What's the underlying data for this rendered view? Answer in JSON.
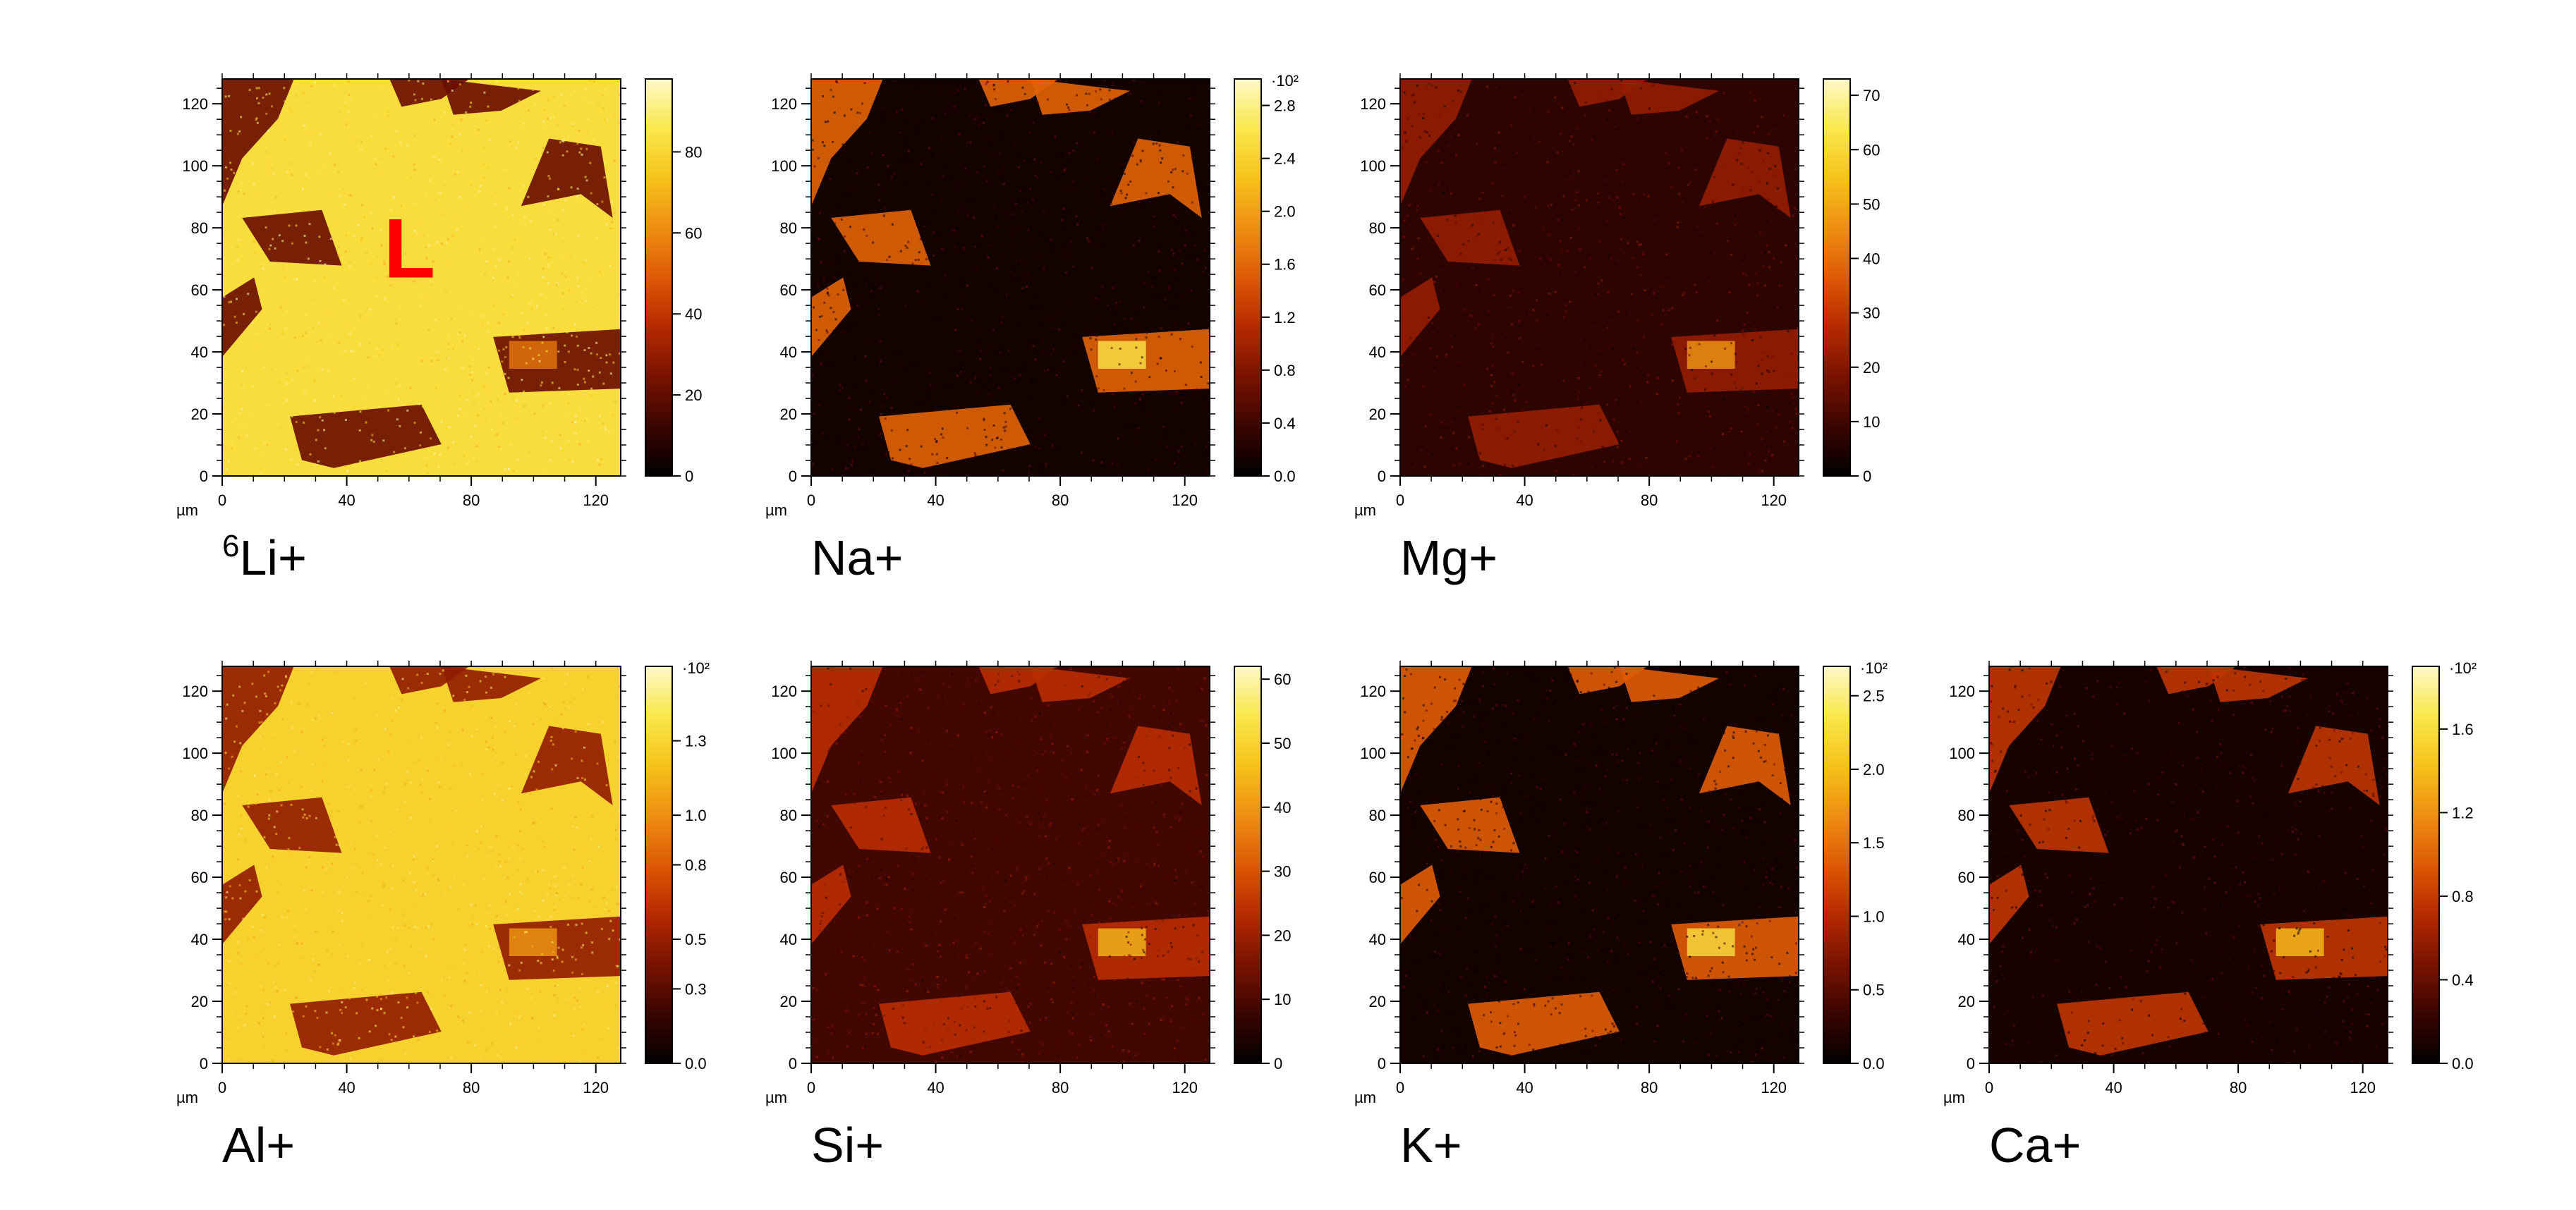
{
  "figure": {
    "background": "#ffffff"
  },
  "colormap_stops": [
    "#000000",
    "#3a0500",
    "#7a1200",
    "#b52a00",
    "#dd5a05",
    "#ef8e12",
    "#f6c21c",
    "#f9e84a",
    "#fff8c8"
  ],
  "chart_data": [
    {
      "type": "heatmap",
      "title": "Li+",
      "title_superscript": "6",
      "annotation": "L",
      "xlabel": "µm",
      "xlim": [
        0,
        128
      ],
      "ylim": [
        0,
        128
      ],
      "x_ticks": [
        "0",
        "40",
        "80",
        "120"
      ],
      "y_ticks": [
        "0",
        "20",
        "40",
        "60",
        "80",
        "100",
        "120"
      ],
      "colorbar": {
        "min": 0,
        "max": 98,
        "ticks": [
          "0",
          "20",
          "40",
          "60",
          "80"
        ],
        "tick_values": [
          0,
          20,
          40,
          60,
          80
        ],
        "exponent": ""
      },
      "typical_level": {
        "background": 0.84,
        "feature": 0.22
      }
    },
    {
      "type": "heatmap",
      "title": "Na+",
      "xlabel": "µm",
      "xlim": [
        0,
        128
      ],
      "ylim": [
        0,
        128
      ],
      "x_ticks": [
        "0",
        "40",
        "80",
        "120"
      ],
      "y_ticks": [
        "0",
        "20",
        "40",
        "60",
        "80",
        "100",
        "120"
      ],
      "colorbar": {
        "min": 0,
        "max": 3.0,
        "ticks": [
          "0.0",
          "0.4",
          "0.8",
          "1.2",
          "1.6",
          "2.0",
          "2.4",
          "2.8"
        ],
        "tick_values": [
          0,
          0.4,
          0.8,
          1.2,
          1.6,
          2.0,
          2.4,
          2.8
        ],
        "exponent": "·10²"
      },
      "typical_level": {
        "background": 0.04,
        "feature": 0.52
      }
    },
    {
      "type": "heatmap",
      "title": "Mg+",
      "xlabel": "µm",
      "xlim": [
        0,
        128
      ],
      "ylim": [
        0,
        128
      ],
      "x_ticks": [
        "0",
        "40",
        "80",
        "120"
      ],
      "y_ticks": [
        "0",
        "20",
        "40",
        "60",
        "80",
        "100",
        "120"
      ],
      "colorbar": {
        "min": 0,
        "max": 73,
        "ticks": [
          "0",
          "10",
          "20",
          "30",
          "40",
          "50",
          "60",
          "70"
        ],
        "tick_values": [
          0,
          10,
          20,
          30,
          40,
          50,
          60,
          70
        ],
        "exponent": ""
      },
      "typical_level": {
        "background": 0.1,
        "feature": 0.3
      }
    },
    {
      "type": "heatmap",
      "title": "Al+",
      "xlabel": "µm",
      "xlim": [
        0,
        128
      ],
      "ylim": [
        0,
        128
      ],
      "x_ticks": [
        "0",
        "40",
        "80",
        "120"
      ],
      "y_ticks": [
        "0",
        "20",
        "40",
        "60",
        "80",
        "100",
        "120"
      ],
      "colorbar": {
        "min": 0,
        "max": 1.6,
        "ticks": [
          "0.0",
          "0.3",
          "0.5",
          "0.8",
          "1.0",
          "1.3"
        ],
        "tick_values": [
          0,
          0.3,
          0.5,
          0.8,
          1.0,
          1.3
        ],
        "exponent": "·10²"
      },
      "typical_level": {
        "background": 0.8,
        "feature": 0.3
      }
    },
    {
      "type": "heatmap",
      "title": "Si+",
      "xlabel": "µm",
      "xlim": [
        0,
        128
      ],
      "ylim": [
        0,
        128
      ],
      "x_ticks": [
        "0",
        "40",
        "80",
        "120"
      ],
      "y_ticks": [
        "0",
        "20",
        "40",
        "60",
        "80",
        "100",
        "120"
      ],
      "colorbar": {
        "min": 0,
        "max": 62,
        "ticks": [
          "0",
          "10",
          "20",
          "30",
          "40",
          "50",
          "60"
        ],
        "tick_values": [
          0,
          10,
          20,
          30,
          40,
          50,
          60
        ],
        "exponent": ""
      },
      "typical_level": {
        "background": 0.14,
        "feature": 0.38
      }
    },
    {
      "type": "heatmap",
      "title": "K+",
      "xlabel": "µm",
      "xlim": [
        0,
        128
      ],
      "ylim": [
        0,
        128
      ],
      "x_ticks": [
        "0",
        "40",
        "80",
        "120"
      ],
      "y_ticks": [
        "0",
        "20",
        "40",
        "60",
        "80",
        "100",
        "120"
      ],
      "colorbar": {
        "min": 0,
        "max": 2.7,
        "ticks": [
          "0.0",
          "0.5",
          "1.0",
          "1.5",
          "2.0",
          "2.5"
        ],
        "tick_values": [
          0,
          0.5,
          1.0,
          1.5,
          2.0,
          2.5
        ],
        "exponent": "·10²"
      },
      "typical_level": {
        "background": 0.04,
        "feature": 0.5
      }
    },
    {
      "type": "heatmap",
      "title": "Ca+",
      "xlabel": "µm",
      "xlim": [
        0,
        128
      ],
      "ylim": [
        0,
        128
      ],
      "x_ticks": [
        "0",
        "40",
        "80",
        "120"
      ],
      "y_ticks": [
        "0",
        "20",
        "40",
        "60",
        "80",
        "100",
        "120"
      ],
      "colorbar": {
        "min": 0,
        "max": 1.9,
        "ticks": [
          "0.0",
          "0.4",
          "0.8",
          "1.2",
          "1.6"
        ],
        "tick_values": [
          0,
          0.4,
          0.8,
          1.2,
          1.6
        ],
        "exponent": "·10²"
      },
      "typical_level": {
        "background": 0.05,
        "feature": 0.4
      }
    }
  ]
}
